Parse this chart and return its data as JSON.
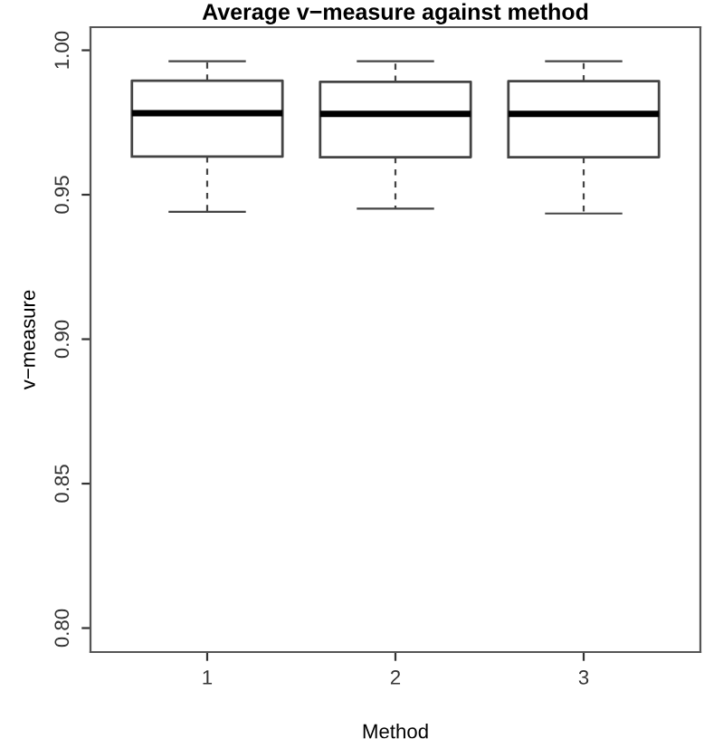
{
  "chart_data": {
    "type": "box",
    "title": "Average v−measure against method",
    "xlabel": "Method",
    "ylabel": "v−measure",
    "categories": [
      "1",
      "2",
      "3"
    ],
    "boxes": [
      {
        "low": 0.9441,
        "q1": 0.9632,
        "median": 0.9782,
        "q3": 0.9895,
        "high": 0.9962
      },
      {
        "low": 0.9452,
        "q1": 0.963,
        "median": 0.978,
        "q3": 0.9891,
        "high": 0.9962
      },
      {
        "low": 0.9435,
        "q1": 0.963,
        "median": 0.978,
        "q3": 0.9893,
        "high": 0.9962
      }
    ],
    "ylim": [
      0.7917,
      1.008
    ],
    "yticks": [
      {
        "value": 0.8,
        "label": "0.80"
      },
      {
        "value": 0.85,
        "label": "0.85"
      },
      {
        "value": 0.9,
        "label": "0.90"
      },
      {
        "value": 0.95,
        "label": "0.95"
      },
      {
        "value": 1.0,
        "label": "1.00"
      }
    ],
    "grid": false
  }
}
